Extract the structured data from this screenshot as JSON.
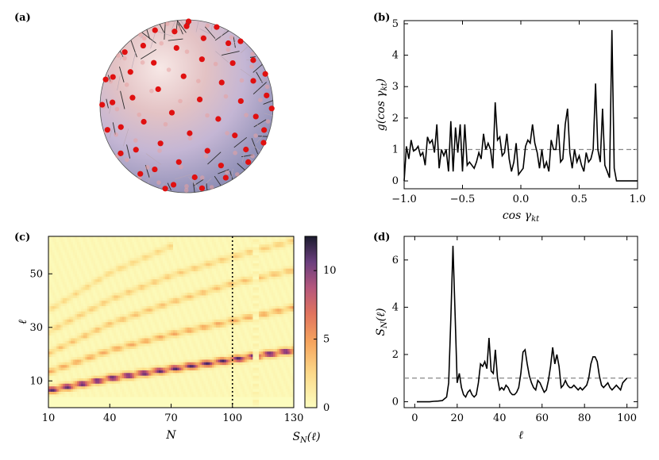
{
  "panels": {
    "a": {
      "label": "(a)"
    },
    "b": {
      "label": "(b)"
    },
    "c": {
      "label": "(c)"
    },
    "d": {
      "label": "(d)"
    }
  },
  "chart_data": [
    {
      "panel": "b",
      "type": "line",
      "xlabel": "cos γkt",
      "xlabel_main": "cos γ",
      "xlabel_sub": "kt",
      "ylabel": "g(cos γkt)",
      "ylabel_main": "g(cos γ",
      "ylabel_sub": "kt",
      "ylabel_close": ")",
      "xlim": [
        -1.0,
        1.0
      ],
      "ylim": [
        -0.25,
        5.1
      ],
      "xticks": [
        -1.0,
        -0.5,
        0.0,
        0.5,
        1.0
      ],
      "xtick_labels": [
        "−1.0",
        "−0.5",
        "0.0",
        "0.5",
        "1.0"
      ],
      "yticks": [
        0,
        1,
        2,
        3,
        4,
        5
      ],
      "ytick_labels": [
        "0",
        "1",
        "2",
        "3",
        "4",
        "5"
      ],
      "reference_line": 1,
      "x": [
        -1.0,
        -0.98,
        -0.96,
        -0.94,
        -0.92,
        -0.9,
        -0.88,
        -0.86,
        -0.84,
        -0.82,
        -0.8,
        -0.78,
        -0.76,
        -0.74,
        -0.72,
        -0.7,
        -0.68,
        -0.66,
        -0.64,
        -0.62,
        -0.6,
        -0.58,
        -0.56,
        -0.54,
        -0.52,
        -0.5,
        -0.48,
        -0.46,
        -0.44,
        -0.42,
        -0.4,
        -0.38,
        -0.36,
        -0.34,
        -0.32,
        -0.3,
        -0.28,
        -0.26,
        -0.24,
        -0.22,
        -0.2,
        -0.18,
        -0.16,
        -0.14,
        -0.12,
        -0.1,
        -0.08,
        -0.06,
        -0.04,
        -0.02,
        0.0,
        0.02,
        0.04,
        0.06,
        0.08,
        0.1,
        0.12,
        0.14,
        0.16,
        0.18,
        0.2,
        0.22,
        0.24,
        0.26,
        0.28,
        0.3,
        0.32,
        0.34,
        0.36,
        0.38,
        0.4,
        0.42,
        0.44,
        0.46,
        0.48,
        0.5,
        0.52,
        0.54,
        0.56,
        0.58,
        0.6,
        0.62,
        0.64,
        0.66,
        0.68,
        0.7,
        0.72,
        0.74,
        0.76,
        0.78,
        0.8,
        0.82,
        0.84,
        0.86,
        0.88,
        0.9,
        0.92,
        0.94,
        0.96,
        0.98,
        1.0
      ],
      "y": [
        0.0,
        1.1,
        0.7,
        1.3,
        0.95,
        1.0,
        1.1,
        0.8,
        0.9,
        0.5,
        1.4,
        1.2,
        1.3,
        0.9,
        1.8,
        0.4,
        1.0,
        0.8,
        1.0,
        0.3,
        1.9,
        0.3,
        1.7,
        0.9,
        1.8,
        0.3,
        1.8,
        0.5,
        0.6,
        0.5,
        0.4,
        0.6,
        0.9,
        0.7,
        1.5,
        1.0,
        1.2,
        1.0,
        0.4,
        2.5,
        1.3,
        1.4,
        0.8,
        0.9,
        1.5,
        0.7,
        0.3,
        0.6,
        1.2,
        0.2,
        0.3,
        0.4,
        1.1,
        1.3,
        1.2,
        1.8,
        1.2,
        0.9,
        0.4,
        1.0,
        0.4,
        0.6,
        0.3,
        1.3,
        1.0,
        1.0,
        1.8,
        0.6,
        0.7,
        1.8,
        2.3,
        0.9,
        0.4,
        1.0,
        0.6,
        0.8,
        0.5,
        0.3,
        0.9,
        0.6,
        0.7,
        1.0,
        3.1,
        1.0,
        0.6,
        2.3,
        0.5,
        0.3,
        0.1,
        4.8,
        0.4,
        0.0,
        0.0,
        0.0,
        0.0,
        0.0,
        0.0,
        0.0,
        0.0,
        0.0,
        0.0
      ]
    },
    {
      "panel": "c",
      "type": "heatmap",
      "xlabel": "N",
      "ylabel": "ℓ",
      "colorbar_label": "SN(ℓ)",
      "colorbar_label_main": "S",
      "colorbar_label_sub": "N",
      "colorbar_label_rest": "(ℓ)",
      "xlim": [
        10,
        130
      ],
      "ylim": [
        0,
        64
      ],
      "xticks": [
        10,
        40,
        70,
        100,
        130
      ],
      "xtick_labels": [
        "10",
        "40",
        "70",
        "100",
        "130"
      ],
      "yticks": [
        10,
        30,
        50
      ],
      "ytick_labels": [
        "10",
        "30",
        "50"
      ],
      "colorbar_range": [
        0,
        12.5
      ],
      "colorbar_ticks": [
        0,
        5,
        10
      ],
      "colorbar_tick_labels": [
        "0",
        "5",
        "10"
      ],
      "marker_line_x": 100,
      "ridges": [
        {
          "name": "",
          "points": [
            [
              10,
              6
            ],
            [
              40,
              10.5
            ],
            [
              70,
              14
            ],
            [
              100,
              17.5
            ],
            [
              130,
              21
            ]
          ],
          "peak": 11
        },
        {
          "name": "",
          "points": [
            [
              10,
              13
            ],
            [
              40,
              21
            ],
            [
              70,
              27
            ],
            [
              100,
              32
            ],
            [
              130,
              37
            ]
          ],
          "peak": 4
        },
        {
          "name": "",
          "points": [
            [
              10,
              20
            ],
            [
              40,
              31
            ],
            [
              70,
              39
            ],
            [
              100,
              46
            ],
            [
              130,
              51
            ]
          ],
          "peak": 3
        },
        {
          "name": "",
          "points": [
            [
              10,
              28
            ],
            [
              40,
              40
            ],
            [
              70,
              49
            ],
            [
              100,
              56
            ],
            [
              130,
              62
            ]
          ],
          "peak": 2.5
        },
        {
          "name": "",
          "points": [
            [
              10,
              36
            ],
            [
              40,
              50
            ],
            [
              70,
              60
            ]
          ],
          "peak": 2
        }
      ]
    },
    {
      "panel": "d",
      "type": "line",
      "xlabel": "ℓ",
      "ylabel": "SN(ℓ)",
      "ylabel_main": "S",
      "ylabel_sub": "N",
      "ylabel_rest": "(ℓ)",
      "xlim": [
        -5,
        105
      ],
      "ylim": [
        -0.25,
        7.0
      ],
      "xticks": [
        0,
        20,
        40,
        60,
        80,
        100
      ],
      "xtick_labels": [
        "0",
        "20",
        "40",
        "60",
        "80",
        "100"
      ],
      "yticks": [
        0,
        2,
        4,
        6
      ],
      "ytick_labels": [
        "0",
        "2",
        "4",
        "6"
      ],
      "reference_line": 1,
      "x": [
        1,
        3,
        5,
        7,
        9,
        11,
        13,
        15,
        16,
        17,
        18,
        19,
        20,
        21,
        22,
        23,
        24,
        25,
        26,
        27,
        28,
        29,
        30,
        31,
        32,
        33,
        34,
        35,
        36,
        37,
        38,
        39,
        40,
        41,
        42,
        43,
        44,
        45,
        46,
        47,
        48,
        49,
        50,
        51,
        52,
        53,
        54,
        55,
        56,
        57,
        58,
        59,
        60,
        61,
        62,
        63,
        64,
        65,
        66,
        67,
        68,
        69,
        70,
        71,
        72,
        73,
        74,
        75,
        76,
        77,
        78,
        79,
        80,
        81,
        82,
        83,
        84,
        85,
        86,
        87,
        88,
        89,
        90,
        91,
        92,
        93,
        94,
        95,
        96,
        97,
        98,
        99,
        100
      ],
      "y": [
        0.0,
        0.0,
        0.0,
        0.0,
        0.02,
        0.03,
        0.05,
        0.2,
        0.8,
        3.5,
        6.6,
        3.8,
        0.8,
        1.2,
        0.6,
        0.3,
        0.2,
        0.4,
        0.5,
        0.3,
        0.2,
        0.3,
        0.8,
        1.6,
        1.5,
        1.7,
        1.4,
        2.7,
        1.3,
        1.2,
        2.2,
        1.0,
        0.5,
        0.6,
        0.5,
        0.7,
        0.6,
        0.4,
        0.3,
        0.3,
        0.4,
        0.6,
        1.2,
        2.1,
        2.2,
        1.6,
        1.1,
        0.8,
        0.6,
        0.5,
        0.9,
        0.8,
        0.6,
        0.4,
        0.5,
        0.9,
        1.5,
        2.3,
        1.6,
        2.0,
        1.5,
        0.6,
        0.7,
        0.9,
        0.7,
        0.6,
        0.6,
        0.7,
        0.6,
        0.5,
        0.6,
        0.5,
        0.6,
        0.7,
        1.0,
        1.6,
        1.9,
        1.9,
        1.7,
        1.1,
        0.7,
        0.6,
        0.7,
        0.8,
        0.6,
        0.5,
        0.6,
        0.7,
        0.6,
        0.5,
        0.8,
        0.9,
        1.0
      ]
    }
  ],
  "colors": {
    "line": "#000000",
    "dashed": "#888888",
    "sphere_point": "#e01010",
    "heat_low": "#fdfdbf",
    "heat_high": "#1b1b2e"
  }
}
